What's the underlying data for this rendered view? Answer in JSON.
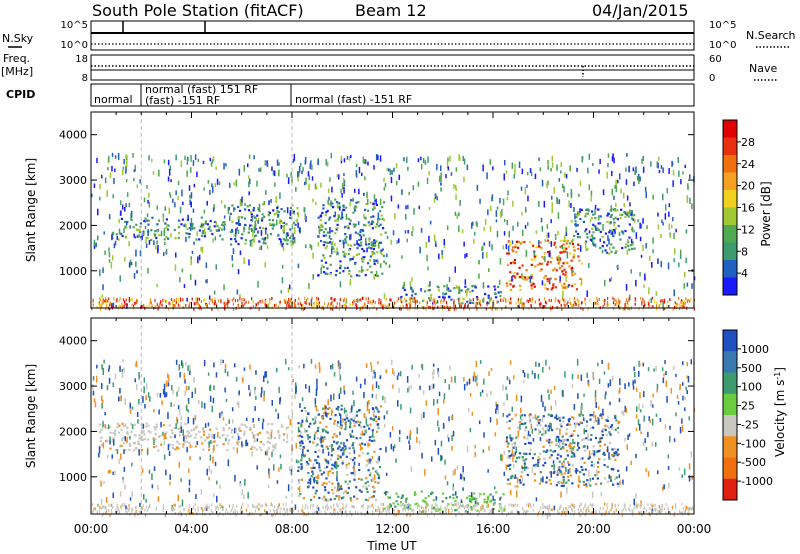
{
  "header": {
    "station": "South Pole Station (fitACF)",
    "beam": "Beam 12",
    "date": "04/Jan/2015"
  },
  "summary": {
    "nsky_label": "N.Sky",
    "nsearch_label": "N.Search",
    "nsky_ticks": [
      "10^5",
      "10^0"
    ],
    "nsearch_ticks": [
      "10^5",
      "10^0"
    ],
    "freq_label": "Freq.",
    "freq_unit": "[MHz]",
    "freq_ticks": [
      "18",
      "8"
    ],
    "nave_label": "Nave",
    "nave_ticks": [
      "60",
      "0"
    ],
    "cpid_label": "CPID",
    "cpid_segments": [
      {
        "line1": "normal",
        "line2": ""
      },
      {
        "line1": "normal (fast) 151 RF",
        "line2": "(fast) -151 RF"
      },
      {
        "line1": "normal (fast) -151 RF",
        "line2": ""
      }
    ]
  },
  "xaxis": {
    "label": "Time UT",
    "ticks": [
      "00:00",
      "04:00",
      "08:00",
      "12:00",
      "16:00",
      "20:00",
      "00:00"
    ]
  },
  "chart_data": [
    {
      "type": "heatmap",
      "title": "",
      "xlabel": "Time UT",
      "ylabel": "Slant Range [km]",
      "xlim": [
        0,
        24
      ],
      "ylim": [
        180,
        4500
      ],
      "yticks": [
        "1000",
        "2000",
        "3000",
        "4000"
      ],
      "colorbar": {
        "label": "Power [dB]",
        "ticks": [
          "4",
          "8",
          "12",
          "16",
          "20",
          "24",
          "28"
        ],
        "colors": [
          "#1a1aff",
          "#2060c0",
          "#3c9c70",
          "#50a850",
          "#a0c832",
          "#f0d020",
          "#f5a020",
          "#f07010",
          "#e83010",
          "#e00000"
        ]
      },
      "features": [
        {
          "t0": 0.8,
          "t1": 5.3,
          "r0": 1700,
          "r1": 2200,
          "level": "mid"
        },
        {
          "t0": 5.5,
          "t1": 8.2,
          "r0": 1600,
          "r1": 2500,
          "level": "mid"
        },
        {
          "t0": 9.0,
          "t1": 11.7,
          "r0": 900,
          "r1": 2600,
          "level": "mid"
        },
        {
          "t0": 12.2,
          "t1": 16.3,
          "r0": 300,
          "r1": 700,
          "level": "mid"
        },
        {
          "t0": 16.5,
          "t1": 19.5,
          "r0": 600,
          "r1": 1700,
          "level": "high"
        },
        {
          "t0": 19.0,
          "t1": 21.6,
          "r0": 1400,
          "r1": 2400,
          "level": "mid"
        }
      ]
    },
    {
      "type": "heatmap",
      "title": "",
      "xlabel": "Time UT",
      "ylabel": "Slant Range [km]",
      "xlim": [
        0,
        24
      ],
      "ylim": [
        180,
        4500
      ],
      "yticks": [
        "1000",
        "2000",
        "3000",
        "4000"
      ],
      "colorbar": {
        "label": "Velocity [m s^-1]",
        "ticks": [
          "1000",
          "500",
          "100",
          "25",
          "-25",
          "-100",
          "-500",
          "-1000"
        ],
        "colors": [
          "#2050c0",
          "#3a78b0",
          "#3c9c70",
          "#6ccc40",
          "#c8c8c0",
          "#f09020",
          "#f07010",
          "#e02010"
        ]
      },
      "features": [
        {
          "t0": 0.3,
          "t1": 7.8,
          "r0": 1600,
          "r1": 2200,
          "level": "gray"
        },
        {
          "t0": 8.2,
          "t1": 11.5,
          "r0": 500,
          "r1": 2600,
          "level": "mixed"
        },
        {
          "t0": 11.6,
          "t1": 16.5,
          "r0": 250,
          "r1": 700,
          "level": "green"
        },
        {
          "t0": 16.5,
          "t1": 21.0,
          "r0": 800,
          "r1": 2400,
          "level": "mixed"
        }
      ]
    }
  ]
}
